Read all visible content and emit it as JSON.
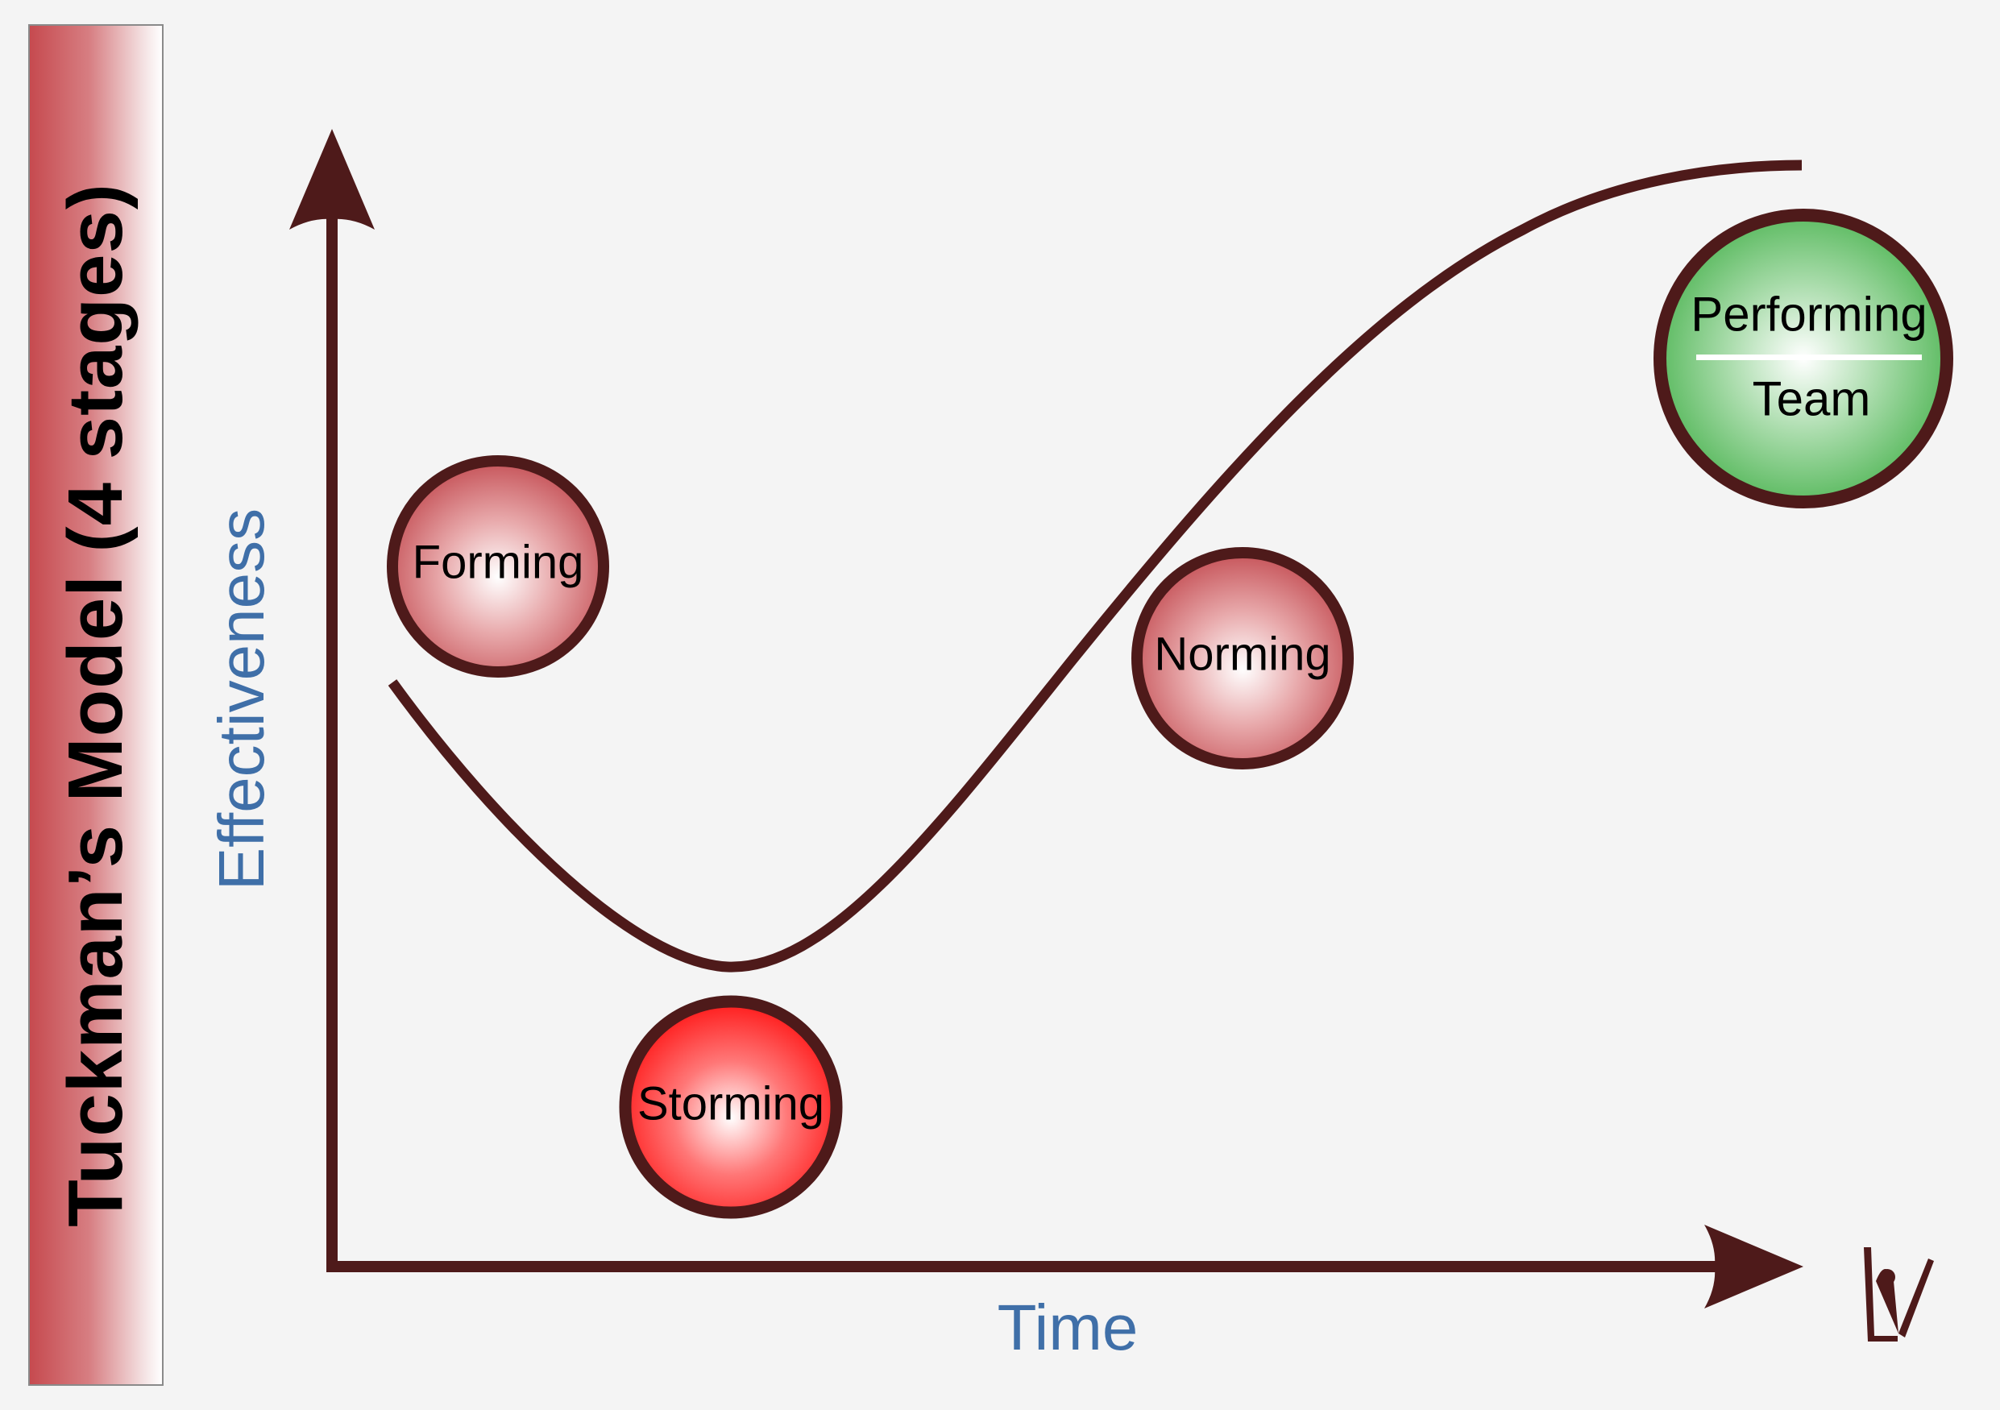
{
  "title": "Tuckman’s Model (4 stages)",
  "axes": {
    "y_label": "Effectiveness",
    "x_label": "Time"
  },
  "stages": [
    {
      "id": "forming",
      "label": "Forming",
      "color": "#c94a50"
    },
    {
      "id": "storming",
      "label": "Storming",
      "color": "#ff1a1a"
    },
    {
      "id": "norming",
      "label": "Norming",
      "color": "#c94a50"
    },
    {
      "id": "performing",
      "label_top": "Performing",
      "label_bottom": "Team",
      "color": "#45b04a"
    }
  ],
  "colors": {
    "line": "#4e1a1a",
    "axis_label": "#3f6fa8",
    "background": "#f4f4f4"
  },
  "logo": {
    "icon": "brand-logo-icon"
  }
}
